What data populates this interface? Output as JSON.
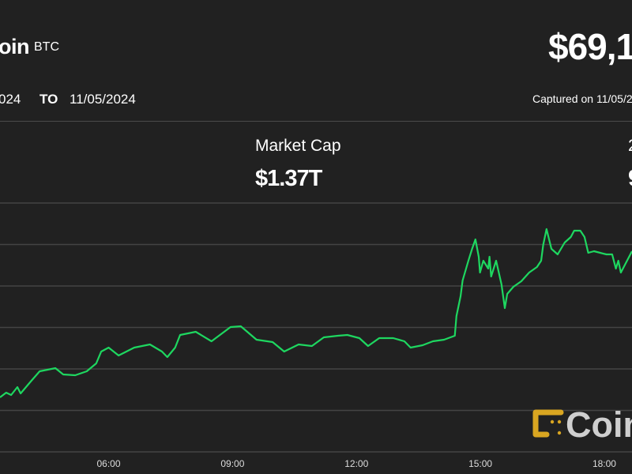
{
  "header": {
    "asset_name": "oin",
    "asset_symbol": "BTC",
    "price": "$69,1",
    "date_from": "024",
    "date_to_label": "TO",
    "date_to": "11/05/2024",
    "captured": "Captured on 11/05/2"
  },
  "stats": {
    "market_cap_label": "Market Cap",
    "market_cap_value": "$1.37T",
    "stat3_label": "2",
    "stat3_value": "9"
  },
  "watermark": {
    "text": "Coin",
    "logo_color": "#d9a621"
  },
  "chart_data": {
    "type": "line",
    "title": "",
    "xlabel": "",
    "ylabel": "",
    "x_unit": "hours",
    "xlim": [
      3.37,
      18.67
    ],
    "ylim": [
      66560,
      69710
    ],
    "grid": true,
    "line_color": "#1ed760",
    "x_ticks": [
      {
        "value": 6,
        "label": "06:00"
      },
      {
        "value": 9,
        "label": "09:00"
      },
      {
        "value": 12,
        "label": "12:00"
      },
      {
        "value": 15,
        "label": "15:00"
      },
      {
        "value": 18,
        "label": "18:00"
      }
    ],
    "series": [
      {
        "points": [
          [
            3.37,
            67250
          ],
          [
            3.52,
            67310
          ],
          [
            3.64,
            67280
          ],
          [
            3.79,
            67380
          ],
          [
            3.87,
            67300
          ],
          [
            4.13,
            67460
          ],
          [
            4.33,
            67580
          ],
          [
            4.52,
            67600
          ],
          [
            4.71,
            67620
          ],
          [
            4.9,
            67540
          ],
          [
            5.19,
            67530
          ],
          [
            5.47,
            67580
          ],
          [
            5.7,
            67680
          ],
          [
            5.82,
            67830
          ],
          [
            6.0,
            67880
          ],
          [
            6.24,
            67780
          ],
          [
            6.62,
            67880
          ],
          [
            7.0,
            67920
          ],
          [
            7.29,
            67830
          ],
          [
            7.42,
            67760
          ],
          [
            7.61,
            67880
          ],
          [
            7.73,
            68040
          ],
          [
            8.11,
            68080
          ],
          [
            8.49,
            67960
          ],
          [
            8.95,
            68140
          ],
          [
            9.2,
            68150
          ],
          [
            9.58,
            67980
          ],
          [
            9.97,
            67950
          ],
          [
            10.25,
            67830
          ],
          [
            10.6,
            67920
          ],
          [
            10.92,
            67900
          ],
          [
            11.21,
            68010
          ],
          [
            11.55,
            68030
          ],
          [
            11.78,
            68040
          ],
          [
            12.07,
            68000
          ],
          [
            12.28,
            67900
          ],
          [
            12.55,
            68000
          ],
          [
            12.89,
            68000
          ],
          [
            13.16,
            67960
          ],
          [
            13.31,
            67880
          ],
          [
            13.6,
            67910
          ],
          [
            13.85,
            67960
          ],
          [
            14.12,
            67980
          ],
          [
            14.38,
            68030
          ],
          [
            14.42,
            68280
          ],
          [
            14.52,
            68530
          ],
          [
            14.57,
            68730
          ],
          [
            14.71,
            68980
          ],
          [
            14.8,
            69130
          ],
          [
            14.88,
            69250
          ],
          [
            14.96,
            69030
          ],
          [
            14.99,
            68830
          ],
          [
            15.07,
            68980
          ],
          [
            15.19,
            68880
          ],
          [
            15.22,
            69030
          ],
          [
            15.26,
            68780
          ],
          [
            15.38,
            68980
          ],
          [
            15.51,
            68680
          ],
          [
            15.59,
            68380
          ],
          [
            15.65,
            68560
          ],
          [
            15.8,
            68650
          ],
          [
            15.99,
            68720
          ],
          [
            16.18,
            68830
          ],
          [
            16.37,
            68900
          ],
          [
            16.47,
            68980
          ],
          [
            16.52,
            69180
          ],
          [
            16.6,
            69380
          ],
          [
            16.72,
            69130
          ],
          [
            16.87,
            69060
          ],
          [
            17.04,
            69210
          ],
          [
            17.19,
            69280
          ],
          [
            17.27,
            69360
          ],
          [
            17.42,
            69360
          ],
          [
            17.52,
            69280
          ],
          [
            17.61,
            69080
          ],
          [
            17.75,
            69100
          ],
          [
            17.9,
            69080
          ],
          [
            18.05,
            69060
          ],
          [
            18.19,
            69060
          ],
          [
            18.28,
            68880
          ],
          [
            18.34,
            68980
          ],
          [
            18.4,
            68830
          ],
          [
            18.53,
            68960
          ],
          [
            18.67,
            69100
          ]
        ]
      }
    ]
  }
}
